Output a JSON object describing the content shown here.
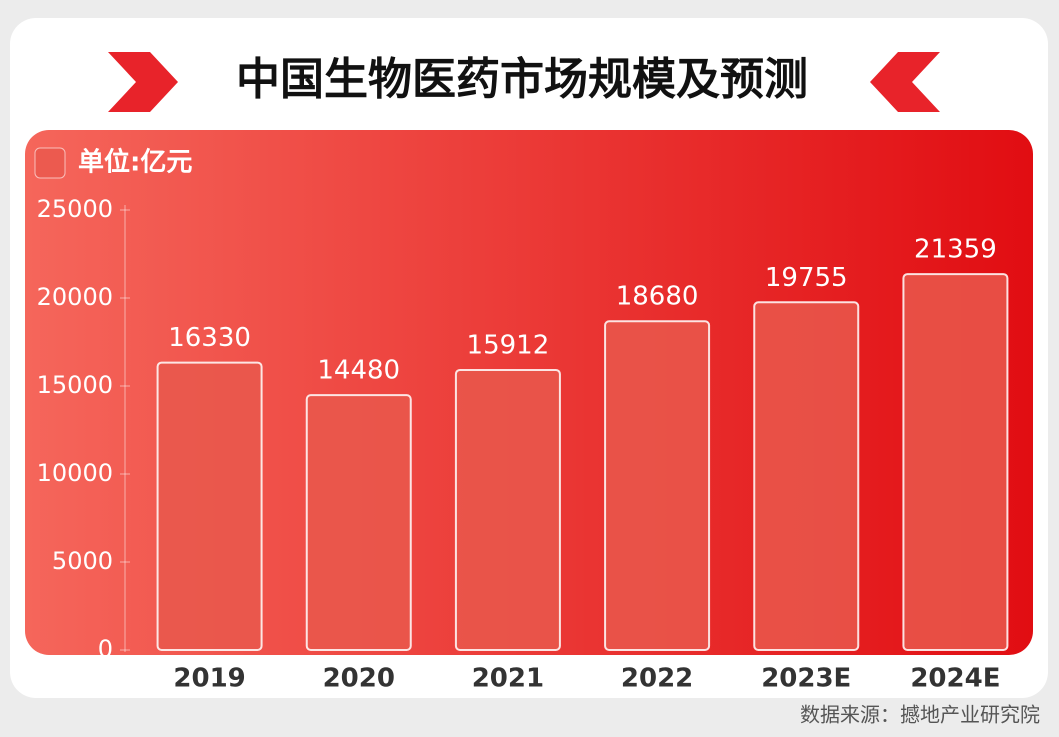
{
  "chart_data": {
    "type": "bar",
    "title": "中国生物医药市场规模及预测",
    "legend_label": "单位:亿元",
    "categories": [
      "2019",
      "2020",
      "2021",
      "2022",
      "2023E",
      "2024E"
    ],
    "values": [
      16330,
      14480,
      15912,
      18680,
      19755,
      21359
    ],
    "color": "#e9584c",
    "ylim": [
      0,
      25000
    ],
    "yticks": [
      0,
      5000,
      10000,
      15000,
      20000,
      25000
    ],
    "source": "数据来源：撼地产业研究院"
  }
}
